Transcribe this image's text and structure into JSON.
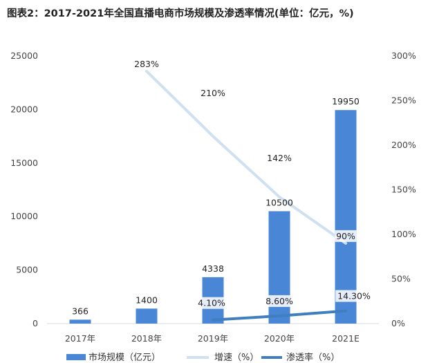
{
  "title": "图表2：2017-2021年全国直播电商市场规模及渗透率情况(单位：亿元，%)",
  "chart_data": {
    "type": "bar",
    "categories": [
      "2017年",
      "2018年",
      "2019年",
      "2020年",
      "2021E"
    ],
    "ylim": [
      0,
      25000
    ],
    "yticks": [
      "0",
      "5000",
      "10000",
      "15000",
      "20000",
      "25000"
    ],
    "y2lim": [
      0,
      300
    ],
    "y2ticks": [
      "0%",
      "50%",
      "100%",
      "150%",
      "200%",
      "250%",
      "300%"
    ],
    "series": [
      {
        "name": "市场规模（亿元）",
        "type": "bar",
        "axis": "left",
        "color": "#4a86d6",
        "values": [
          366,
          1400,
          4338,
          10500,
          19950
        ],
        "labels": [
          "366",
          "1400",
          "4338",
          "10500",
          "19950"
        ]
      },
      {
        "name": "增速（%）",
        "type": "line",
        "axis": "right",
        "color": "#cfe0f0",
        "values": [
          null,
          283,
          210,
          142,
          90
        ],
        "labels": [
          "",
          "283%",
          "210%",
          "142%",
          "90%"
        ]
      },
      {
        "name": "渗透率（%）",
        "type": "line",
        "axis": "right",
        "color": "#3f7fc0",
        "values": [
          null,
          null,
          4.1,
          8.6,
          14.3
        ],
        "labels": [
          "",
          "",
          "4.10%",
          "8.60%",
          "14.30%"
        ]
      }
    ],
    "grid": false,
    "legend": "bottom"
  }
}
